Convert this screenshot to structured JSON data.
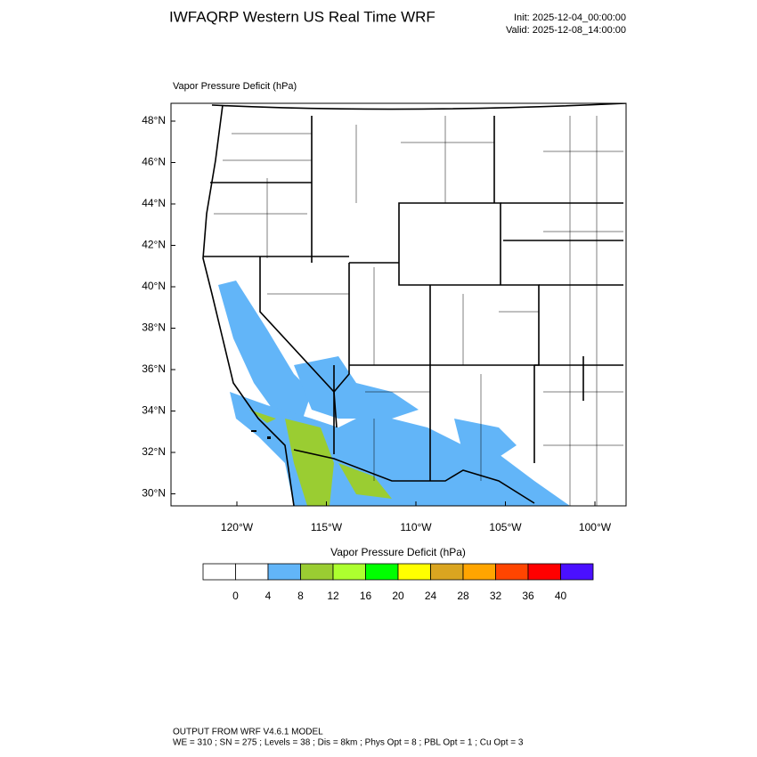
{
  "header": {
    "title": "IWFAQRP Western US Real Time WRF",
    "init": "Init: 2025-12-04_00:00:00",
    "valid": "Valid: 2025-12-08_14:00:00"
  },
  "map": {
    "title": "Vapor Pressure Deficit   (hPa)",
    "lat_labels": [
      "48°N",
      "46°N",
      "44°N",
      "42°N",
      "40°N",
      "38°N",
      "36°N",
      "34°N",
      "32°N",
      "30°N"
    ],
    "lon_labels": [
      "120°W",
      "115°W",
      "110°W",
      "105°W",
      "100°W"
    ]
  },
  "colorbar": {
    "title": "Vapor Pressure Deficit  (hPa)",
    "colors": [
      "#ffffff",
      "#ffffff",
      "#62b5f8",
      "#9acd32",
      "#adff2f",
      "#00ff00",
      "#ffff00",
      "#daa520",
      "#ffa500",
      "#ff4500",
      "#ff0000",
      "#4a10ff"
    ],
    "labels": [
      0,
      4,
      8,
      12,
      16,
      20,
      24,
      28,
      32,
      36,
      40
    ]
  },
  "footer": {
    "line1": "OUTPUT FROM WRF V4.6.1 MODEL",
    "line2": "WE = 310 ; SN = 275 ; Levels = 38 ; Dis = 8km ; Phys Opt = 8 ; PBL Opt = 1 ; Cu Opt = 3"
  }
}
